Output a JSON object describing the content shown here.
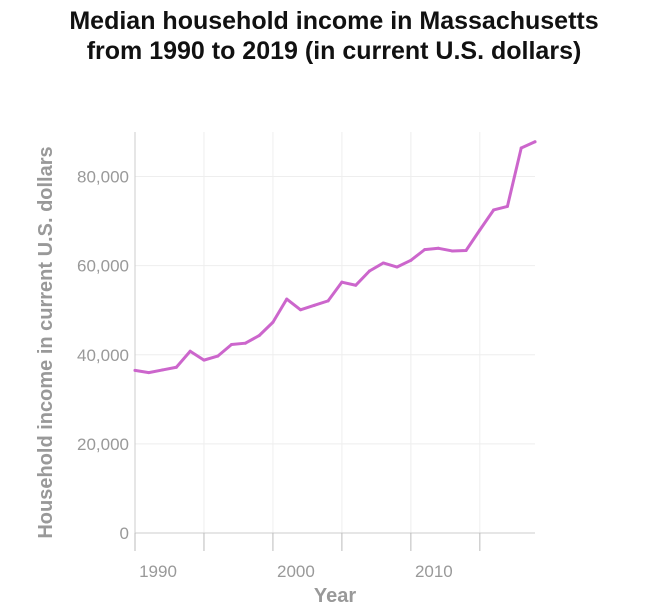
{
  "chart_data": {
    "type": "line",
    "title_lines": [
      "Median household income in Massachusetts",
      "from 1990 to 2019 (in current U.S. dollars)"
    ],
    "xlabel": "Year",
    "ylabel": "Household income in current U.S. dollars",
    "xlim": [
      1990,
      2019
    ],
    "ylim": [
      0,
      90000
    ],
    "xticks": [
      1990,
      1995,
      2000,
      2005,
      2010,
      2015
    ],
    "xtick_labels": [
      "1990",
      "",
      "2000",
      "",
      "2010",
      ""
    ],
    "yticks": [
      0,
      20000,
      40000,
      60000,
      80000
    ],
    "ytick_labels": [
      "0",
      "20,000",
      "40,000",
      "60,000",
      "80,000"
    ],
    "grid": true,
    "legend": "none",
    "line_color": "#cc66cc",
    "x": [
      1990,
      1991,
      1992,
      1993,
      1994,
      1995,
      1996,
      1997,
      1998,
      1999,
      2000,
      2001,
      2002,
      2003,
      2004,
      2005,
      2006,
      2007,
      2008,
      2009,
      2010,
      2011,
      2012,
      2013,
      2014,
      2015,
      2016,
      2017,
      2018,
      2019
    ],
    "series": [
      {
        "values": [
          36500,
          36000,
          36600,
          37200,
          40800,
          38800,
          39700,
          42300,
          42600,
          44300,
          47300,
          52500,
          50100,
          51100,
          52100,
          56300,
          55600,
          58800,
          60600,
          59700,
          61200,
          63600,
          63900,
          63300,
          63400,
          68000,
          72500,
          73300,
          86400,
          87800
        ]
      }
    ]
  }
}
